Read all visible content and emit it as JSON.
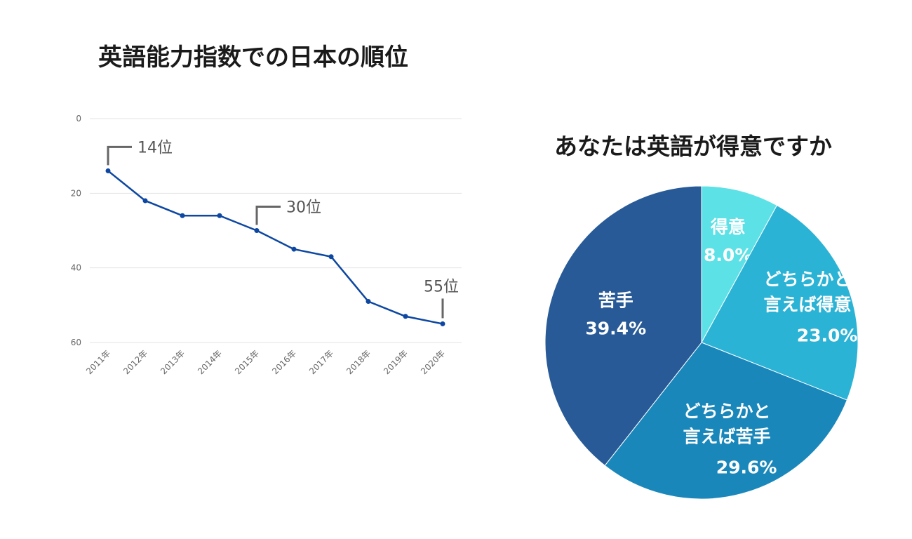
{
  "chart_data": [
    {
      "type": "line",
      "title": "英語能力指数での日本の順位",
      "categories": [
        "2011年",
        "2012年",
        "2013年",
        "2014年",
        "2015年",
        "2016年",
        "2017年",
        "2018年",
        "2019年",
        "2020年"
      ],
      "series": [
        {
          "name": "順位",
          "values": [
            14,
            22,
            26,
            26,
            30,
            35,
            37,
            49,
            53,
            55
          ],
          "color": "#0d47a1"
        }
      ],
      "y_ticks": [
        "0",
        "20",
        "40",
        "60"
      ],
      "ylim": [
        0,
        60
      ],
      "y_inverted": true,
      "grid": true,
      "annotations": [
        {
          "category": "2011年",
          "value": 14,
          "text": "14位"
        },
        {
          "category": "2015年",
          "value": 30,
          "text": "30位"
        },
        {
          "category": "2020年",
          "value": 55,
          "text": "55位"
        }
      ]
    },
    {
      "type": "pie",
      "title": "あなたは英語が得意ですか",
      "slices": [
        {
          "label": [
            "得意"
          ],
          "value": 8.0,
          "pct": "8.0%",
          "color": "#5ce1e6"
        },
        {
          "label": [
            "どちらかと",
            "言えば得意"
          ],
          "value": 23.0,
          "pct": "23.0%",
          "color": "#2bb3d6"
        },
        {
          "label": [
            "どちらかと",
            "言えば苦手"
          ],
          "value": 29.6,
          "pct": "29.6%",
          "color": "#1a87bb"
        },
        {
          "label": [
            "苦手"
          ],
          "value": 39.4,
          "pct": "39.4%",
          "color": "#275a96"
        }
      ]
    }
  ]
}
